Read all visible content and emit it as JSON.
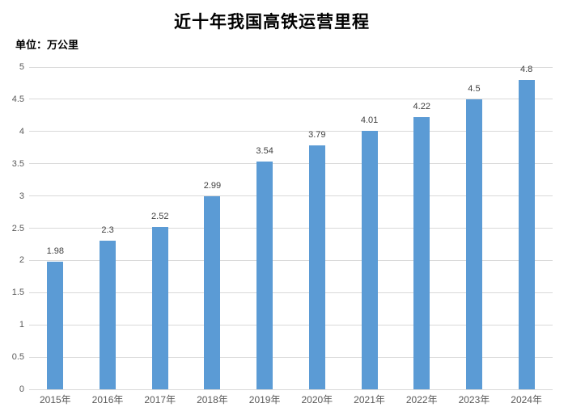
{
  "chart_data": {
    "type": "bar",
    "title": "近十年我国高铁运营里程",
    "unit": "单位：万公里",
    "categories": [
      "2015年",
      "2016年",
      "2017年",
      "2018年",
      "2019年",
      "2020年",
      "2021年",
      "2022年",
      "2023年",
      "2024年"
    ],
    "values": [
      1.98,
      2.3,
      2.52,
      2.99,
      3.54,
      3.79,
      4.01,
      4.22,
      4.5,
      4.8
    ],
    "value_labels": [
      "1.98",
      "2.3",
      "2.52",
      "2.99",
      "3.54",
      "3.79",
      "4.01",
      "4.22",
      "4.5",
      "4.8"
    ],
    "ylabel": "",
    "xlabel": "",
    "ylim": [
      0,
      5
    ],
    "ytick_step": 0.5,
    "ytick_labels": [
      "0",
      "0.5",
      "1",
      "1.5",
      "2",
      "2.5",
      "3",
      "3.5",
      "4",
      "4.5",
      "5"
    ],
    "grid": true,
    "legend": false,
    "colors": {
      "bar": "#5B9BD5",
      "gridline": "#D9D9D9",
      "tick_label": "#595959",
      "data_label": "#404040",
      "title": "#000000",
      "unit_label": "#000000",
      "background": "#FFFFFF"
    }
  }
}
